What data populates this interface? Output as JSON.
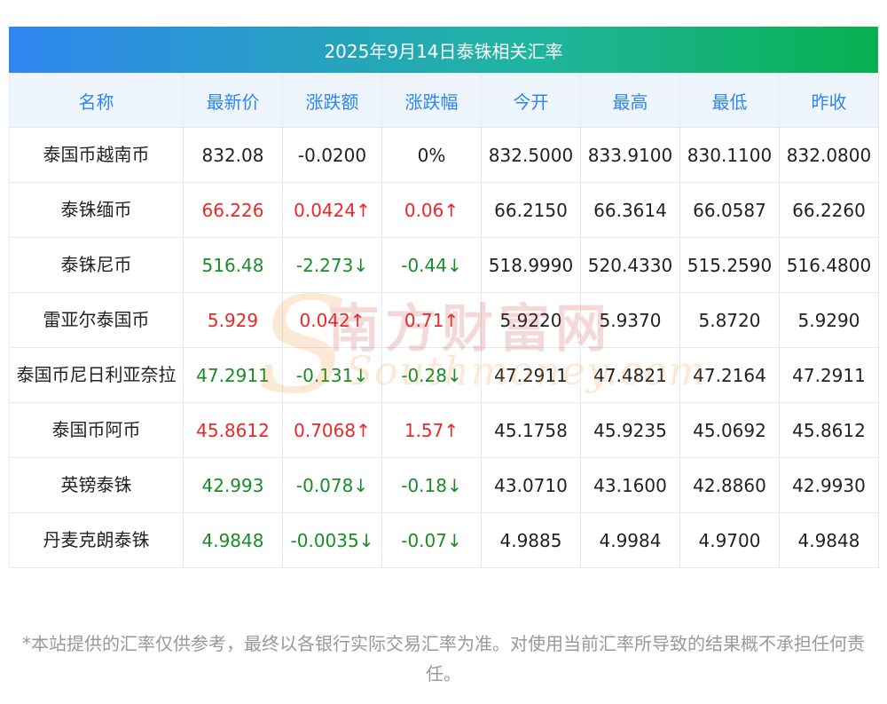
{
  "title": "2025年9月14日泰铢相关汇率",
  "colors": {
    "up": "#e8282b",
    "down": "#1a8c28",
    "header_text": "#2f86f0",
    "header_bg": "#eef5fd"
  },
  "watermark": {
    "cn": "南方财富网",
    "en": "Southmoney.com"
  },
  "headers": [
    "名称",
    "最新价",
    "涨跌额",
    "涨跌幅",
    "今开",
    "最高",
    "最低",
    "昨收"
  ],
  "rows": [
    {
      "name": "泰国币越南币",
      "latest": "832.08",
      "change": "-0.0200",
      "pct": "0%",
      "open": "832.5000",
      "high": "833.9100",
      "low": "830.1100",
      "prev": "832.0800",
      "trend": "flat"
    },
    {
      "name": "泰铢缅币",
      "latest": "66.226",
      "change": "0.0424↑",
      "pct": "0.06↑",
      "open": "66.2150",
      "high": "66.3614",
      "low": "66.0587",
      "prev": "66.2260",
      "trend": "up"
    },
    {
      "name": "泰铢尼币",
      "latest": "516.48",
      "change": "-2.273↓",
      "pct": "-0.44↓",
      "open": "518.9990",
      "high": "520.4330",
      "low": "515.2590",
      "prev": "516.4800",
      "trend": "down"
    },
    {
      "name": "雷亚尔泰国币",
      "latest": "5.929",
      "change": "0.042↑",
      "pct": "0.71↑",
      "open": "5.9220",
      "high": "5.9370",
      "low": "5.8720",
      "prev": "5.9290",
      "trend": "up"
    },
    {
      "name": "泰国币尼日利亚奈拉",
      "latest": "47.2911",
      "change": "-0.131↓",
      "pct": "-0.28↓",
      "open": "47.2911",
      "high": "47.4821",
      "low": "47.2164",
      "prev": "47.2911",
      "trend": "down"
    },
    {
      "name": "泰国币阿币",
      "latest": "45.8612",
      "change": "0.7068↑",
      "pct": "1.57↑",
      "open": "45.1758",
      "high": "45.9235",
      "low": "45.0692",
      "prev": "45.8612",
      "trend": "up"
    },
    {
      "name": "英镑泰铢",
      "latest": "42.993",
      "change": "-0.078↓",
      "pct": "-0.18↓",
      "open": "43.0710",
      "high": "43.1600",
      "low": "42.8860",
      "prev": "42.9930",
      "trend": "down"
    },
    {
      "name": "丹麦克朗泰铢",
      "latest": "4.9848",
      "change": "-0.0035↓",
      "pct": "-0.07↓",
      "open": "4.9885",
      "high": "4.9984",
      "low": "4.9700",
      "prev": "4.9848",
      "trend": "down"
    }
  ],
  "footnote": "*本站提供的汇率仅供参考，最终以各银行实际交易汇率为准。对使用当前汇率所导致的结果概不承担任何责任。"
}
